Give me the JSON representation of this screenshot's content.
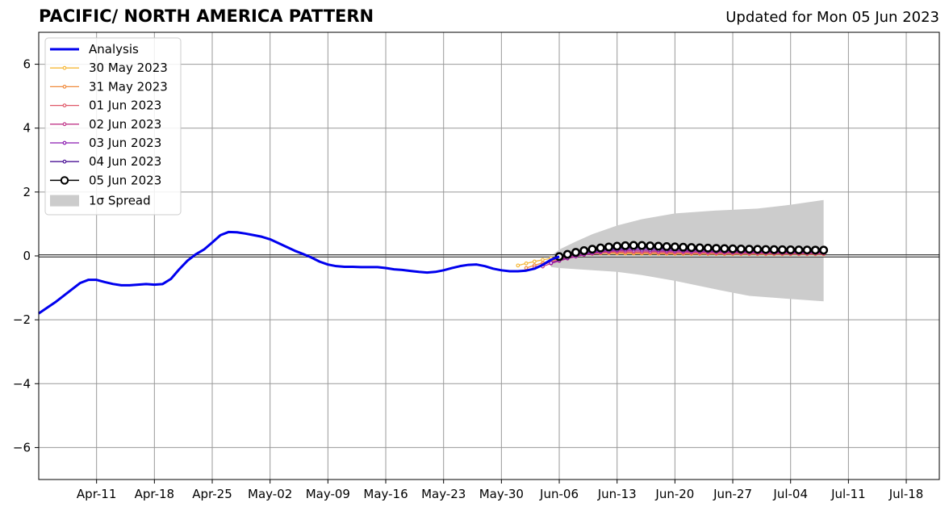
{
  "header": {
    "title": "PACIFIC/ NORTH AMERICA PATTERN",
    "updated": "Updated for Mon 05 Jun 2023"
  },
  "chart_data": {
    "type": "line",
    "title": "PACIFIC/ NORTH AMERICA PATTERN",
    "xlabel": "",
    "ylabel": "",
    "ylim": [
      -7,
      7
    ],
    "xlim": [
      "2023-04-04",
      "2023-07-22"
    ],
    "grid": true,
    "legend_position": "top-left",
    "x_ticks": [
      "Apr-11",
      "Apr-18",
      "Apr-25",
      "May-02",
      "May-09",
      "May-16",
      "May-23",
      "May-30",
      "Jun-06",
      "Jun-13",
      "Jun-20",
      "Jun-27",
      "Jul-04",
      "Jul-11",
      "Jul-18"
    ],
    "y_ticks": [
      "−6",
      "−4",
      "−2",
      "0",
      "2",
      "4",
      "6"
    ],
    "analysis": {
      "name": "Analysis",
      "color": "#0000ee",
      "points": [
        [
          "2023-04-04",
          -1.8
        ],
        [
          "2023-04-06",
          -1.45
        ],
        [
          "2023-04-08",
          -1.05
        ],
        [
          "2023-04-09",
          -0.85
        ],
        [
          "2023-04-10",
          -0.75
        ],
        [
          "2023-04-11",
          -0.75
        ],
        [
          "2023-04-12",
          -0.82
        ],
        [
          "2023-04-13",
          -0.88
        ],
        [
          "2023-04-14",
          -0.92
        ],
        [
          "2023-04-15",
          -0.92
        ],
        [
          "2023-04-16",
          -0.9
        ],
        [
          "2023-04-17",
          -0.88
        ],
        [
          "2023-04-18",
          -0.9
        ],
        [
          "2023-04-19",
          -0.88
        ],
        [
          "2023-04-20",
          -0.72
        ],
        [
          "2023-04-21",
          -0.42
        ],
        [
          "2023-04-22",
          -0.15
        ],
        [
          "2023-04-23",
          0.05
        ],
        [
          "2023-04-24",
          0.2
        ],
        [
          "2023-04-25",
          0.42
        ],
        [
          "2023-04-26",
          0.65
        ],
        [
          "2023-04-27",
          0.75
        ],
        [
          "2023-04-28",
          0.74
        ],
        [
          "2023-04-29",
          0.7
        ],
        [
          "2023-04-30",
          0.65
        ],
        [
          "2023-05-01",
          0.6
        ],
        [
          "2023-05-02",
          0.52
        ],
        [
          "2023-05-03",
          0.4
        ],
        [
          "2023-05-04",
          0.28
        ],
        [
          "2023-05-05",
          0.16
        ],
        [
          "2023-05-06",
          0.06
        ],
        [
          "2023-05-07",
          -0.05
        ],
        [
          "2023-05-08",
          -0.18
        ],
        [
          "2023-05-09",
          -0.27
        ],
        [
          "2023-05-10",
          -0.32
        ],
        [
          "2023-05-11",
          -0.34
        ],
        [
          "2023-05-12",
          -0.34
        ],
        [
          "2023-05-13",
          -0.35
        ],
        [
          "2023-05-14",
          -0.35
        ],
        [
          "2023-05-15",
          -0.35
        ],
        [
          "2023-05-16",
          -0.38
        ],
        [
          "2023-05-17",
          -0.42
        ],
        [
          "2023-05-18",
          -0.44
        ],
        [
          "2023-05-19",
          -0.47
        ],
        [
          "2023-05-20",
          -0.5
        ],
        [
          "2023-05-21",
          -0.52
        ],
        [
          "2023-05-22",
          -0.5
        ],
        [
          "2023-05-23",
          -0.45
        ],
        [
          "2023-05-24",
          -0.38
        ],
        [
          "2023-05-25",
          -0.32
        ],
        [
          "2023-05-26",
          -0.28
        ],
        [
          "2023-05-27",
          -0.27
        ],
        [
          "2023-05-28",
          -0.32
        ],
        [
          "2023-05-29",
          -0.4
        ],
        [
          "2023-05-30",
          -0.45
        ],
        [
          "2023-05-31",
          -0.48
        ],
        [
          "2023-06-01",
          -0.48
        ],
        [
          "2023-06-02",
          -0.46
        ],
        [
          "2023-06-03",
          -0.4
        ],
        [
          "2023-06-04",
          -0.28
        ],
        [
          "2023-06-05",
          -0.12
        ],
        [
          "2023-06-06",
          -0.02
        ]
      ]
    },
    "spread": {
      "name": "1σ Spread",
      "color": "#cccccc",
      "upper": [
        [
          "2023-06-05",
          0.0
        ],
        [
          "2023-06-06",
          0.2
        ],
        [
          "2023-06-08",
          0.45
        ],
        [
          "2023-06-10",
          0.68
        ],
        [
          "2023-06-13",
          0.95
        ],
        [
          "2023-06-16",
          1.15
        ],
        [
          "2023-06-20",
          1.33
        ],
        [
          "2023-06-25",
          1.42
        ],
        [
          "2023-06-30",
          1.48
        ],
        [
          "2023-07-04",
          1.6
        ],
        [
          "2023-07-08",
          1.75
        ]
      ],
      "lower": [
        [
          "2023-06-05",
          -0.35
        ],
        [
          "2023-06-06",
          -0.38
        ],
        [
          "2023-06-10",
          -0.45
        ],
        [
          "2023-06-13",
          -0.5
        ],
        [
          "2023-06-16",
          -0.6
        ],
        [
          "2023-06-20",
          -0.78
        ],
        [
          "2023-06-25",
          -1.05
        ],
        [
          "2023-06-29",
          -1.25
        ],
        [
          "2023-07-04",
          -1.35
        ],
        [
          "2023-07-08",
          -1.42
        ]
      ]
    },
    "forecasts": [
      {
        "name": "30 May 2023",
        "color": "#f6b83a",
        "start": "2023-06-01",
        "end": "2023-07-08",
        "v0": -0.3,
        "peak": 0.08,
        "endv": 0.05,
        "marker": "small"
      },
      {
        "name": "31 May 2023",
        "color": "#f08a3c",
        "start": "2023-06-02",
        "end": "2023-07-08",
        "v0": -0.38,
        "peak": 0.1,
        "endv": 0.06,
        "marker": "small"
      },
      {
        "name": "01 Jun 2023",
        "color": "#e05a6a",
        "start": "2023-06-03",
        "end": "2023-07-08",
        "v0": -0.36,
        "peak": 0.12,
        "endv": 0.06,
        "marker": "small"
      },
      {
        "name": "02 Jun 2023",
        "color": "#c0388a",
        "start": "2023-06-04",
        "end": "2023-07-08",
        "v0": -0.33,
        "peak": 0.16,
        "endv": 0.08,
        "marker": "small"
      },
      {
        "name": "03 Jun 2023",
        "color": "#8a1ab0",
        "start": "2023-06-05",
        "end": "2023-07-08",
        "v0": -0.22,
        "peak": 0.2,
        "endv": 0.1,
        "marker": "small"
      },
      {
        "name": "04 Jun 2023",
        "color": "#4b1296",
        "start": "2023-06-06",
        "end": "2023-07-08",
        "v0": -0.08,
        "peak": 0.25,
        "endv": 0.13,
        "marker": "small"
      },
      {
        "name": "05 Jun 2023",
        "color": "#000000",
        "start": "2023-06-06",
        "end": "2023-07-08",
        "v0": -0.02,
        "peak": 0.33,
        "endv": 0.18,
        "marker": "large"
      }
    ]
  }
}
